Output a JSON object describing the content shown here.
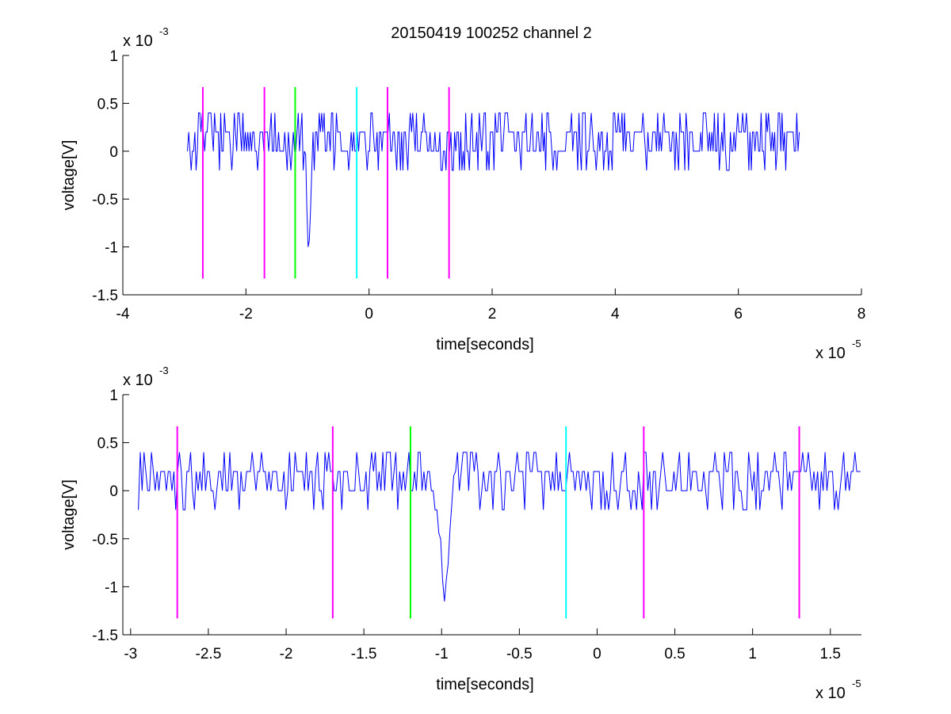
{
  "figure_title": "20150419 100252 channel 2",
  "chart_data": [
    {
      "type": "line",
      "title": "20150419 100252 channel 2",
      "xlabel": "time[seconds]",
      "ylabel": "voltage[V]",
      "x_exponent_label": "x 10",
      "x_exponent_power": "-5",
      "y_exponent_label": "x 10",
      "y_exponent_power": "-3",
      "x_unit_scale": 1e-05,
      "y_unit_scale": 0.001,
      "xlim": [
        -4,
        8
      ],
      "ylim": [
        -1.5,
        1
      ],
      "xticks": [
        -4,
        -2,
        0,
        2,
        4,
        6,
        8
      ],
      "xtick_labels": [
        "-4",
        "-2",
        "0",
        "2",
        "4",
        "6",
        "8"
      ],
      "yticks": [
        -1.5,
        -1,
        -0.5,
        0,
        0.5,
        1
      ],
      "ytick_labels": [
        "-1.5",
        "-1",
        "-0.5",
        "0",
        "0.5",
        "1"
      ],
      "grid": false,
      "signal": {
        "color": "#0000ff",
        "x_start": -2.95,
        "x_end": 7.0,
        "baseline_levels": [
          -0.2,
          0,
          0.2,
          0.4
        ],
        "spike": {
          "x": -0.98,
          "y": -1.2
        }
      },
      "markers": [
        {
          "x": -2.7,
          "color": "#ff00ff",
          "y_range": [
            -1.33,
            0.67
          ]
        },
        {
          "x": -1.7,
          "color": "#ff00ff",
          "y_range": [
            -1.33,
            0.67
          ]
        },
        {
          "x": -1.2,
          "color": "#00ff00",
          "y_range": [
            -1.33,
            0.67
          ]
        },
        {
          "x": -0.2,
          "color": "#00ffff",
          "y_range": [
            -1.33,
            0.67
          ]
        },
        {
          "x": 0.3,
          "color": "#ff00ff",
          "y_range": [
            -1.33,
            0.67
          ]
        },
        {
          "x": 1.3,
          "color": "#ff00ff",
          "y_range": [
            -1.33,
            0.67
          ]
        }
      ]
    },
    {
      "type": "line",
      "title": "",
      "xlabel": "time[seconds]",
      "ylabel": "voltage[V]",
      "x_exponent_label": "x 10",
      "x_exponent_power": "-5",
      "y_exponent_label": "x 10",
      "y_exponent_power": "-3",
      "x_unit_scale": 1e-05,
      "y_unit_scale": 0.001,
      "xlim": [
        -3.05,
        1.7
      ],
      "ylim": [
        -1.5,
        1
      ],
      "xticks": [
        -3,
        -2.5,
        -2,
        -1.5,
        -1,
        -0.5,
        0,
        0.5,
        1,
        1.5
      ],
      "xtick_labels": [
        "-3",
        "-2.5",
        "-2",
        "-1.5",
        "-1",
        "-0.5",
        "0",
        "0.5",
        "1",
        "1.5"
      ],
      "yticks": [
        -1.5,
        -1,
        -0.5,
        0,
        0.5,
        1
      ],
      "ytick_labels": [
        "-1.5",
        "-1",
        "-0.5",
        "0",
        "0.5",
        "1"
      ],
      "grid": false,
      "signal": {
        "color": "#0000ff",
        "x_start": -2.95,
        "x_end": 1.7,
        "baseline_levels": [
          -0.2,
          0,
          0.2,
          0.4
        ],
        "spike": {
          "x": -0.98,
          "y": -1.2
        }
      },
      "markers": [
        {
          "x": -2.7,
          "color": "#ff00ff",
          "y_range": [
            -1.33,
            0.67
          ]
        },
        {
          "x": -1.7,
          "color": "#ff00ff",
          "y_range": [
            -1.33,
            0.67
          ]
        },
        {
          "x": -1.2,
          "color": "#00ff00",
          "y_range": [
            -1.33,
            0.67
          ]
        },
        {
          "x": -0.2,
          "color": "#00ffff",
          "y_range": [
            -1.33,
            0.67
          ]
        },
        {
          "x": 0.3,
          "color": "#ff00ff",
          "y_range": [
            -1.33,
            0.67
          ]
        },
        {
          "x": 1.3,
          "color": "#ff00ff",
          "y_range": [
            -1.33,
            0.67
          ]
        }
      ]
    }
  ]
}
